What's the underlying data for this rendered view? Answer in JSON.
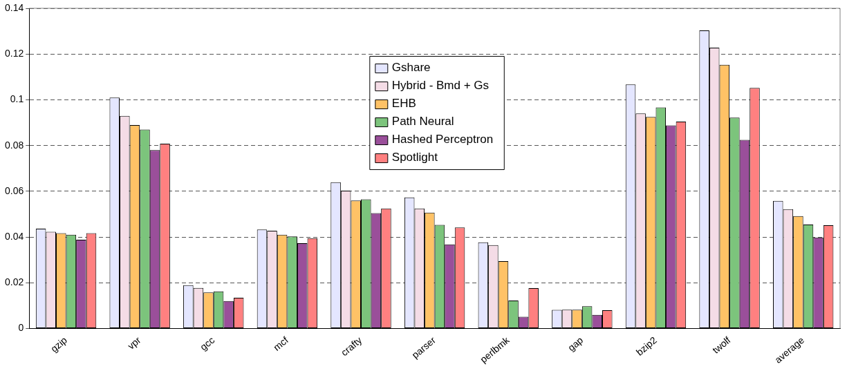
{
  "chart_data": {
    "type": "bar",
    "categories": [
      "gzip",
      "vpr",
      "gcc",
      "mcf",
      "crafty",
      "parser",
      "perlbmk",
      "gap",
      "bzip2",
      "twolf",
      "average"
    ],
    "series": [
      {
        "name": "Gshare",
        "color": "#e4e6ff",
        "values": [
          0.0437,
          0.101,
          0.019,
          0.0433,
          0.064,
          0.0573,
          0.0377,
          0.0082,
          0.1067,
          0.1303,
          0.0558
        ]
      },
      {
        "name": "Hybrid - Bmd + Gs",
        "color": "#f4dce6",
        "values": [
          0.0423,
          0.093,
          0.0178,
          0.0428,
          0.0603,
          0.0525,
          0.0365,
          0.0083,
          0.094,
          0.1228,
          0.0522
        ]
      },
      {
        "name": "EHB",
        "color": "#ffc266",
        "values": [
          0.0417,
          0.089,
          0.0158,
          0.041,
          0.056,
          0.0507,
          0.0295,
          0.0083,
          0.0925,
          0.1153,
          0.0492
        ]
      },
      {
        "name": "Path Neural",
        "color": "#7cc47c",
        "values": [
          0.041,
          0.087,
          0.0163,
          0.0403,
          0.0565,
          0.0453,
          0.0123,
          0.0098,
          0.0967,
          0.0922,
          0.0455
        ]
      },
      {
        "name": "Hashed Perceptron",
        "color": "#9a4f9a",
        "values": [
          0.0388,
          0.078,
          0.012,
          0.0373,
          0.0505,
          0.0368,
          0.0052,
          0.006,
          0.0888,
          0.0825,
          0.0398
        ]
      },
      {
        "name": "Spotlight",
        "color": "#ff8080",
        "values": [
          0.0417,
          0.0808,
          0.0135,
          0.0395,
          0.0525,
          0.0442,
          0.0177,
          0.008,
          0.0905,
          0.1052,
          0.0452
        ]
      }
    ],
    "ylim": [
      0,
      0.14
    ],
    "yticks": [
      0,
      0.02,
      0.04,
      0.06,
      0.08,
      0.1,
      0.12,
      0.14
    ],
    "grid": "y",
    "legend": "top"
  }
}
